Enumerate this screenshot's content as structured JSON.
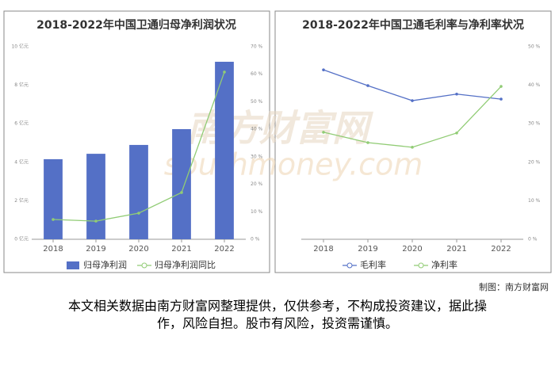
{
  "chart_data": [
    {
      "type": "bar",
      "title": "2018-2022年中国卫通归母净利润状况",
      "categories": [
        "2018",
        "2019",
        "2020",
        "2021",
        "2022"
      ],
      "series": [
        {
          "name": "归母净利润",
          "color": "#5470c6",
          "values": [
            4.16,
            4.44,
            4.9,
            5.72,
            9.22
          ]
        },
        {
          "name": "归母净利润同比",
          "color": "#91cc75",
          "type": "line",
          "axis": "y2",
          "values": [
            7.2,
            6.6,
            9.5,
            17,
            60.8
          ]
        }
      ],
      "ylim": [
        0,
        10
      ],
      "yticks": [
        {
          "value": 0,
          "label": "0 亿元"
        },
        {
          "value": 2,
          "label": "2 亿元"
        },
        {
          "value": 4,
          "label": "4 亿元"
        },
        {
          "value": 6,
          "label": "6 亿元"
        },
        {
          "value": 8,
          "label": "8 亿元"
        },
        {
          "value": 10,
          "label": "10 亿元"
        }
      ],
      "y2lim": [
        0,
        70
      ],
      "y2ticks": [
        {
          "value": 0,
          "label": "0 %"
        },
        {
          "value": 10,
          "label": "10 %"
        },
        {
          "value": 20,
          "label": "20 %"
        },
        {
          "value": 30,
          "label": "30 %"
        },
        {
          "value": 40,
          "label": "40 %"
        },
        {
          "value": 50,
          "label": "50 %"
        },
        {
          "value": 60,
          "label": "60 %"
        },
        {
          "value": 70,
          "label": "70 %"
        }
      ],
      "grid": false,
      "legend": "bottom"
    },
    {
      "type": "line",
      "title": "2018-2022年中国卫通毛利率与净利率状况",
      "categories": [
        "2018",
        "2019",
        "2020",
        "2021",
        "2022"
      ],
      "series": [
        {
          "name": "毛利率",
          "color": "#5470c6",
          "values": [
            44,
            39.9,
            36,
            37.7,
            36.4
          ]
        },
        {
          "name": "净利率",
          "color": "#91cc75",
          "values": [
            27.8,
            25.1,
            23.9,
            27.6,
            39.7
          ]
        }
      ],
      "ylim": [
        0,
        50
      ],
      "yticks": [
        {
          "value": 0,
          "label": "0 %"
        },
        {
          "value": 10,
          "label": "10 %"
        },
        {
          "value": 20,
          "label": "20 %"
        },
        {
          "value": 30,
          "label": "30 %"
        },
        {
          "value": 40,
          "label": "40 %"
        },
        {
          "value": 50,
          "label": "50 %"
        }
      ],
      "ytick_side": "right",
      "grid": false,
      "legend": "bottom"
    }
  ],
  "watermark": {
    "name": "南方财富网",
    "site": "southmoney.com"
  },
  "footer": {
    "source": "制图：南方财富网",
    "note": [
      "本文相关数据由南方财富网整理提供，仅供参考，不构成投资建议，据此操",
      "作，风险自担。股市有风险，投资需谨慎。"
    ]
  }
}
